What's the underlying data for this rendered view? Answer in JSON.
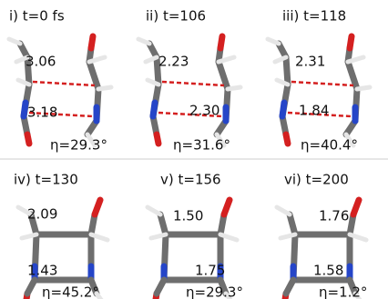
{
  "panels": [
    {
      "label": "i) t=0 fs",
      "distances": [
        "3.06",
        "3.18"
      ],
      "eta": "η=29.3°"
    },
    {
      "label": "ii) t=106",
      "distances": [
        "2.23",
        "2.30"
      ],
      "eta": "η=31.6°"
    },
    {
      "label": "iii) t=118",
      "distances": [
        "2.31",
        "1.84"
      ],
      "eta": "η=40.4°"
    },
    {
      "label": "iv) t=130",
      "distances": [
        "2.09",
        "1.43"
      ],
      "eta": "η=45.2°"
    },
    {
      "label": "v) t=156",
      "distances": [
        "1.50",
        "1.75"
      ],
      "eta": "η=29.3°"
    },
    {
      "label": "vi) t=200",
      "distances": [
        "1.76",
        "1.58"
      ],
      "eta": "η=1.2°"
    }
  ]
}
